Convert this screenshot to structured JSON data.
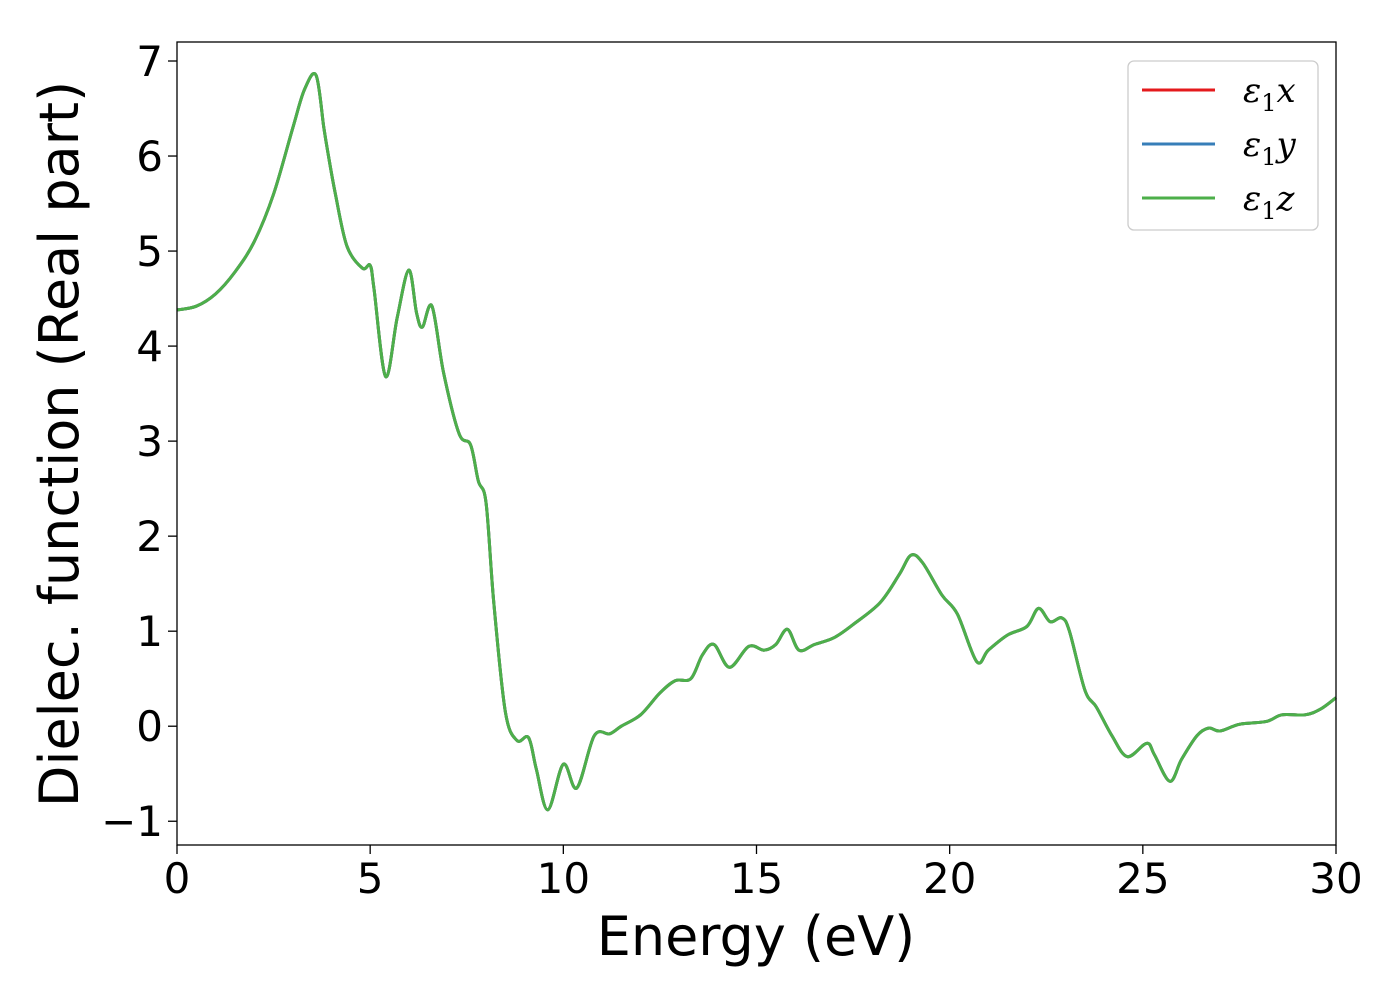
{
  "chart_data": {
    "type": "line",
    "title": "",
    "xlabel": "Energy (eV)",
    "ylabel": "Dielec. function (Real part)",
    "xlim": [
      0,
      30
    ],
    "ylim": [
      -1.25,
      7.2
    ],
    "xticks": [
      0,
      5,
      10,
      15,
      20,
      25,
      30
    ],
    "yticks": [
      -1,
      0,
      1,
      2,
      3,
      4,
      5,
      6,
      7
    ],
    "xtick_labels": [
      "0",
      "5",
      "10",
      "15",
      "20",
      "25",
      "30"
    ],
    "ytick_labels": [
      "−1",
      "0",
      "1",
      "2",
      "3",
      "4",
      "5",
      "6",
      "7"
    ],
    "grid": false,
    "legend_position": "top-right",
    "legend": [
      {
        "base": "ε",
        "sub": "1",
        "axis": "x",
        "color": "#e41a1c"
      },
      {
        "base": "ε",
        "sub": "1",
        "axis": "y",
        "color": "#377eb8"
      },
      {
        "base": "ε",
        "sub": "1",
        "axis": "z",
        "color": "#4daf4a"
      }
    ],
    "x": [
      0,
      0.5,
      1,
      1.5,
      2,
      2.5,
      3,
      3.3,
      3.6,
      3.8,
      3.9,
      4.1,
      4.4,
      4.8,
      5,
      5.1,
      5.4,
      5.7,
      6,
      6.2,
      6.35,
      6.6,
      6.9,
      7.3,
      7.6,
      7.8,
      8,
      8.2,
      8.5,
      8.8,
      9.1,
      9.3,
      9.6,
      10,
      10.35,
      10.8,
      11.2,
      11.5,
      12,
      12.5,
      12.9,
      13.3,
      13.6,
      13.9,
      14.3,
      14.8,
      15.2,
      15.5,
      15.8,
      16.1,
      16.5,
      17,
      17.5,
      18.2,
      18.7,
      19,
      19.3,
      19.8,
      20.2,
      20.7,
      21,
      21.5,
      22,
      22.3,
      22.6,
      22.9,
      23.1,
      23.5,
      23.8,
      24.2,
      24.6,
      25.1,
      25.3,
      25.7,
      26,
      26.4,
      26.7,
      27,
      27.5,
      28.2,
      28.6,
      29.2,
      29.6,
      30
    ],
    "series": [
      {
        "name": "ε₁x",
        "color": "#e41a1c",
        "values": [
          4.38,
          4.42,
          4.55,
          4.78,
          5.1,
          5.6,
          6.3,
          6.7,
          6.85,
          6.3,
          6.05,
          5.6,
          5.05,
          4.82,
          4.85,
          4.6,
          3.68,
          4.3,
          4.8,
          4.35,
          4.2,
          4.42,
          3.72,
          3.08,
          2.96,
          2.58,
          2.35,
          1.3,
          0.15,
          -0.15,
          -0.12,
          -0.45,
          -0.88,
          -0.4,
          -0.65,
          -0.1,
          -0.08,
          0.0,
          0.12,
          0.35,
          0.48,
          0.5,
          0.75,
          0.86,
          0.62,
          0.84,
          0.8,
          0.86,
          1.02,
          0.8,
          0.86,
          0.93,
          1.07,
          1.3,
          1.6,
          1.8,
          1.72,
          1.38,
          1.18,
          0.68,
          0.8,
          0.96,
          1.05,
          1.24,
          1.1,
          1.14,
          1.0,
          0.38,
          0.2,
          -0.1,
          -0.32,
          -0.18,
          -0.3,
          -0.58,
          -0.35,
          -0.1,
          -0.02,
          -0.05,
          0.02,
          0.05,
          0.12,
          0.12,
          0.18,
          0.3
        ]
      },
      {
        "name": "ε₁y",
        "color": "#377eb8",
        "values": [
          4.38,
          4.42,
          4.55,
          4.78,
          5.1,
          5.6,
          6.3,
          6.7,
          6.85,
          6.3,
          6.05,
          5.6,
          5.05,
          4.82,
          4.85,
          4.6,
          3.68,
          4.3,
          4.8,
          4.35,
          4.2,
          4.42,
          3.72,
          3.08,
          2.96,
          2.58,
          2.35,
          1.3,
          0.15,
          -0.15,
          -0.12,
          -0.45,
          -0.88,
          -0.4,
          -0.65,
          -0.1,
          -0.08,
          0.0,
          0.12,
          0.35,
          0.48,
          0.5,
          0.75,
          0.86,
          0.62,
          0.84,
          0.8,
          0.86,
          1.02,
          0.8,
          0.86,
          0.93,
          1.07,
          1.3,
          1.6,
          1.8,
          1.72,
          1.38,
          1.18,
          0.68,
          0.8,
          0.96,
          1.05,
          1.24,
          1.1,
          1.14,
          1.0,
          0.38,
          0.2,
          -0.1,
          -0.32,
          -0.18,
          -0.3,
          -0.58,
          -0.35,
          -0.1,
          -0.02,
          -0.05,
          0.02,
          0.05,
          0.12,
          0.12,
          0.18,
          0.3
        ]
      },
      {
        "name": "ε₁z",
        "color": "#4daf4a",
        "values": [
          4.38,
          4.42,
          4.55,
          4.78,
          5.1,
          5.6,
          6.3,
          6.7,
          6.85,
          6.3,
          6.05,
          5.6,
          5.05,
          4.82,
          4.85,
          4.6,
          3.68,
          4.3,
          4.8,
          4.35,
          4.2,
          4.42,
          3.72,
          3.08,
          2.96,
          2.58,
          2.35,
          1.3,
          0.15,
          -0.15,
          -0.12,
          -0.45,
          -0.88,
          -0.4,
          -0.65,
          -0.1,
          -0.08,
          0.0,
          0.12,
          0.35,
          0.48,
          0.5,
          0.75,
          0.86,
          0.62,
          0.84,
          0.8,
          0.86,
          1.02,
          0.8,
          0.86,
          0.93,
          1.07,
          1.3,
          1.6,
          1.8,
          1.72,
          1.38,
          1.18,
          0.68,
          0.8,
          0.96,
          1.05,
          1.24,
          1.1,
          1.14,
          1.0,
          0.38,
          0.2,
          -0.1,
          -0.32,
          -0.18,
          -0.3,
          -0.58,
          -0.35,
          -0.1,
          -0.02,
          -0.05,
          0.02,
          0.05,
          0.12,
          0.12,
          0.18,
          0.3
        ]
      }
    ]
  }
}
